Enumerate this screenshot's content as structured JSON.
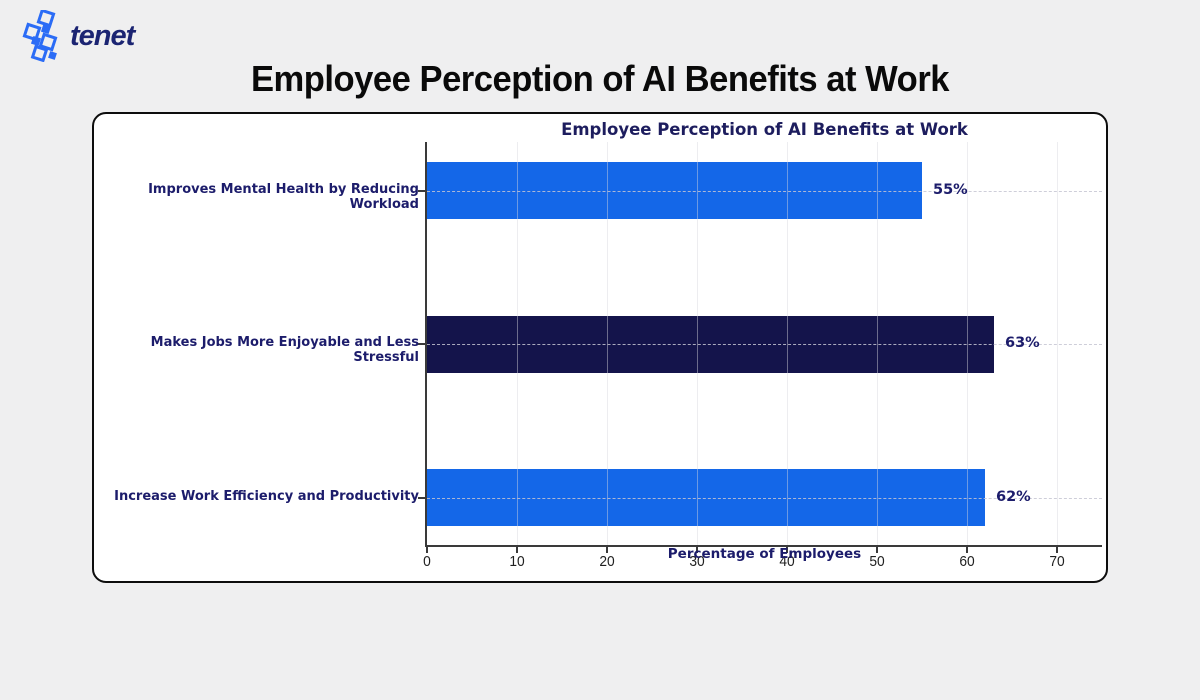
{
  "page": {
    "background_color": "#efeff0",
    "title": "Employee Perception of AI Benefits at Work"
  },
  "logo": {
    "text": "tenet",
    "icon": "tenet-diamond-cluster",
    "icon_color": "#2b6cf6",
    "text_color": "#1b2472"
  },
  "chart_data": {
    "type": "bar",
    "orientation": "horizontal",
    "title": "Employee Perception of AI Benefits at Work",
    "categories": [
      "Improves Mental Health by Reducing Workload",
      "Makes Jobs More Enjoyable and Less Stressful",
      "Increase Work Efficiency and Productivity"
    ],
    "values": [
      55,
      63,
      62
    ],
    "value_labels": [
      "55%",
      "63%",
      "62%"
    ],
    "bar_colors": [
      "#1467e8",
      "#14144b",
      "#1467e8"
    ],
    "xlabel": "Percentage of Employees",
    "xticks": [
      0,
      10,
      20,
      30,
      40,
      50,
      60,
      70
    ],
    "xlim": [
      0,
      75
    ],
    "grid": "vertical-solid-and-horizontal-dashed",
    "legend": "none",
    "title_color": "#1d1d5e",
    "label_color": "#1c1c6b",
    "tick_color": "#1f1f1f"
  }
}
